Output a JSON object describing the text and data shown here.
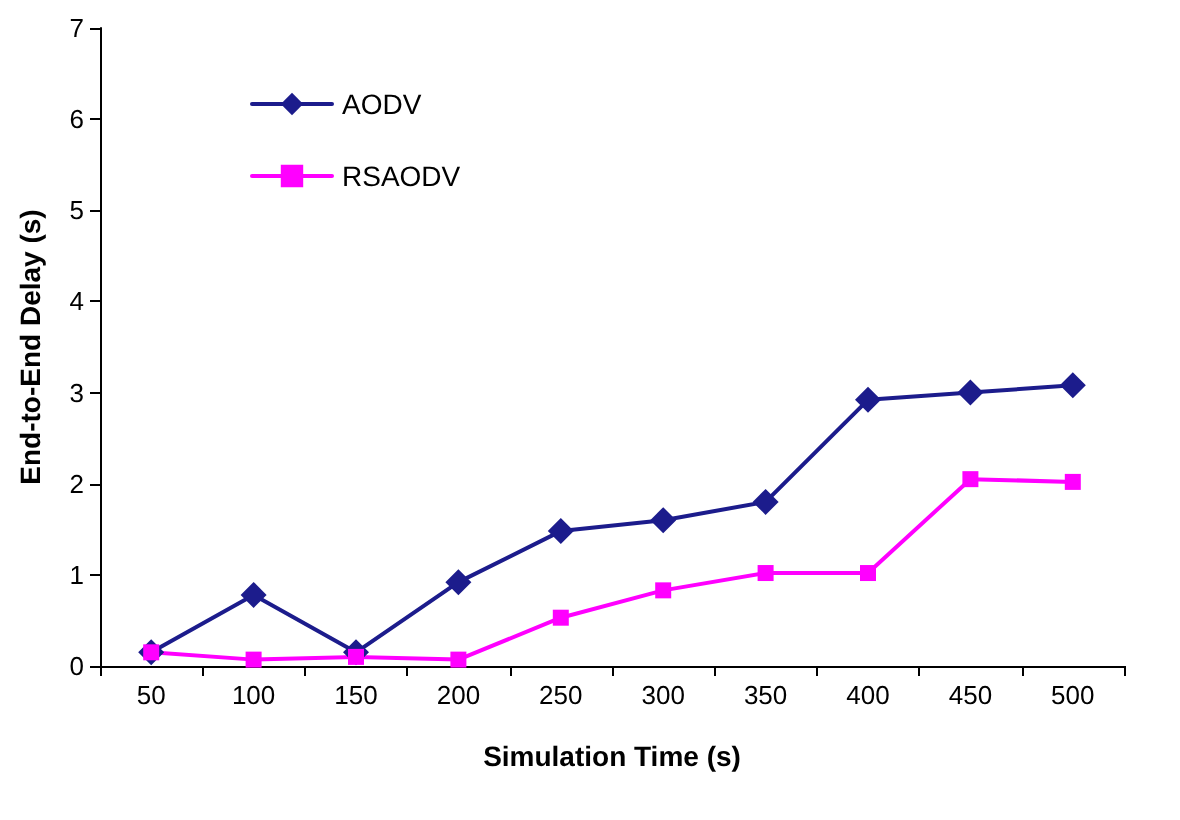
{
  "chart_data": {
    "type": "line",
    "xlabel": "Simulation Time (s)",
    "ylabel": "End-to-End Delay (s)",
    "categories": [
      "50",
      "100",
      "150",
      "200",
      "250",
      "300",
      "350",
      "400",
      "450",
      "500"
    ],
    "series": [
      {
        "name": "AODV",
        "color": "#1c1c8c",
        "marker": "diamond",
        "values": [
          0.15,
          0.78,
          0.15,
          0.92,
          1.48,
          1.6,
          1.8,
          2.92,
          3.0,
          3.08
        ]
      },
      {
        "name": "RSAODV",
        "color": "#ff00ff",
        "marker": "square",
        "values": [
          0.15,
          0.07,
          0.1,
          0.07,
          0.53,
          0.83,
          1.02,
          1.02,
          2.05,
          2.02
        ]
      }
    ],
    "ylim": [
      0,
      7
    ],
    "yticks": [
      0,
      1,
      2,
      3,
      4,
      5,
      6,
      7
    ],
    "grid": false,
    "legend": "top left"
  }
}
